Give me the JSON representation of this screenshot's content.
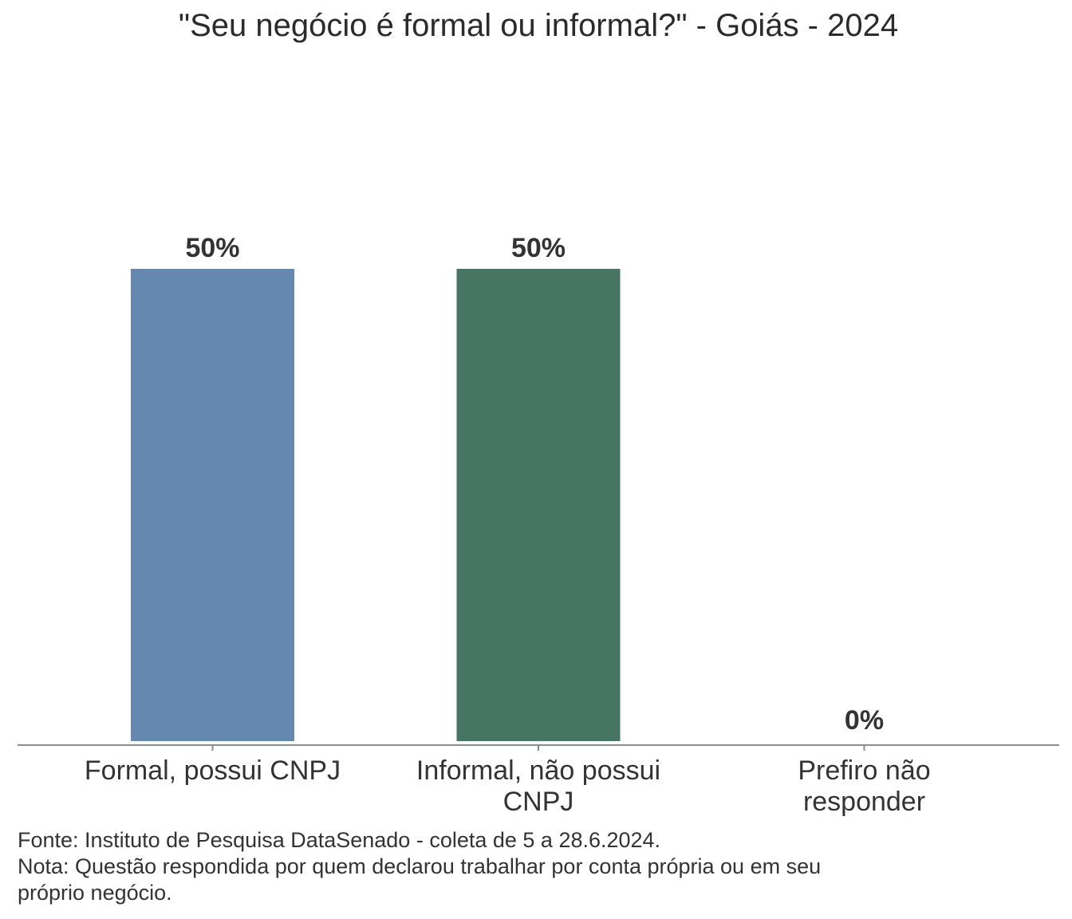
{
  "chart_data": {
    "type": "bar",
    "title": "\"Seu negócio é formal ou informal?\" - Goiás - 2024",
    "categories": [
      "Formal, possui CNPJ",
      "Informal, não possui CNPJ",
      "Prefiro não responder"
    ],
    "category_lines": [
      [
        "Formal, possui CNPJ"
      ],
      [
        "Informal, não possui",
        "CNPJ"
      ],
      [
        "Prefiro não",
        "responder"
      ]
    ],
    "values": [
      50,
      50,
      0
    ],
    "data_labels": [
      "50%",
      "50%",
      "0%"
    ],
    "unit": "%",
    "colors": [
      "#6588b0",
      "#467563",
      "#467563"
    ],
    "ylim": [
      0,
      50
    ],
    "grid": false,
    "legend": "none"
  },
  "footer": {
    "source": "Fonte: Instituto de Pesquisa DataSenado - coleta de 5 a 28.6.2024.",
    "note_line1": "Nota: Questão respondida por quem declarou trabalhar por conta própria ou em seu",
    "note_line2": "próprio negócio."
  }
}
